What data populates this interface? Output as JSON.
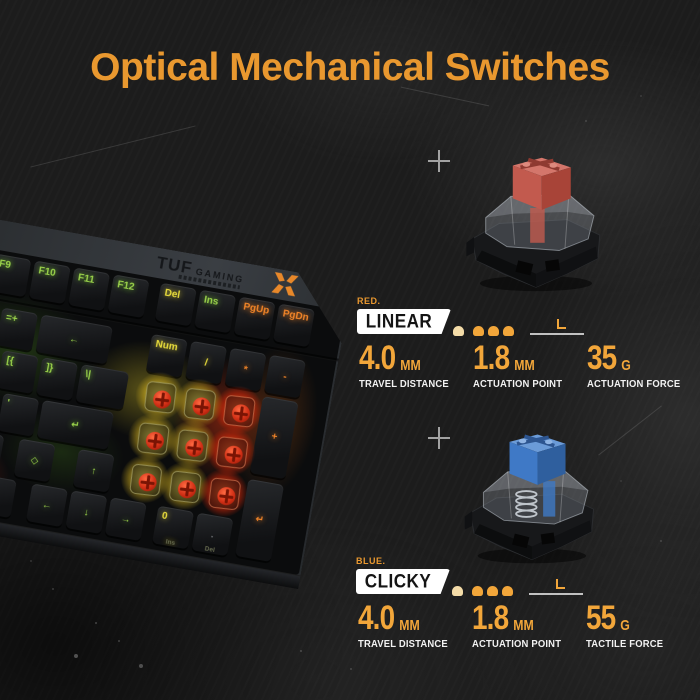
{
  "title": "Optical Mechanical Switches",
  "colors": {
    "accent": "#E9982F",
    "number": "#F2A63A",
    "label": "#F2F2F2",
    "badge_bg": "#FFFFFF",
    "badge_text": "#141414",
    "background": "#1C1C1C",
    "red_stem_top": "#D4766B",
    "red_stem_front": "#C25A4E",
    "red_stem_side": "#A84438",
    "blue_stem_top": "#6B9BD8",
    "blue_stem_front": "#3F79C6",
    "blue_stem_side": "#2F5F9E",
    "key_green": "#9BD34B",
    "key_yellow": "#E8DC3C",
    "key_orange": "#F08428",
    "logo_orange": "#E8882A"
  },
  "sections": [
    {
      "color_label": "RED.",
      "type_label": "LINEAR",
      "switch_name": "red-linear-optical-switch",
      "specs": [
        {
          "value": "4.0",
          "unit": "MM",
          "label": "TRAVEL DISTANCE"
        },
        {
          "value": "1.8",
          "unit": "MM",
          "label": "ACTUATION POINT"
        },
        {
          "value": "35",
          "unit": "G",
          "label": "ACTUATION FORCE"
        }
      ]
    },
    {
      "color_label": "BLUE.",
      "type_label": "CLICKY",
      "switch_name": "blue-clicky-optical-switch",
      "specs": [
        {
          "value": "4.0",
          "unit": "MM",
          "label": "TRAVEL DISTANCE"
        },
        {
          "value": "1.8",
          "unit": "MM",
          "label": "ACTUATION POINT"
        },
        {
          "value": "55",
          "unit": "G",
          "label": "TACTILE FORCE"
        }
      ]
    }
  ],
  "keyboard": {
    "brand": "TUF",
    "brand_sub": "GAMING",
    "keys": [
      {
        "label": "F9",
        "c": 0.2,
        "r": 0,
        "cls": "green"
      },
      {
        "label": "F10",
        "c": 1.2,
        "r": 0,
        "cls": "green"
      },
      {
        "label": "F11",
        "c": 2.2,
        "r": 0,
        "cls": "green"
      },
      {
        "label": "F12",
        "c": 3.2,
        "r": 0,
        "cls": "green"
      },
      {
        "label": "Del",
        "c": 4.4,
        "r": 0,
        "cls": "yellow"
      },
      {
        "label": "Ins",
        "c": 5.4,
        "r": 0,
        "cls": "green"
      },
      {
        "label": "PgUp",
        "c": 6.4,
        "r": 0,
        "cls": "orange"
      },
      {
        "label": "PgDn",
        "c": 7.4,
        "r": 0,
        "cls": "orange"
      },
      {
        "label": "=+",
        "c": 0.6,
        "r": 1,
        "cls": "green"
      },
      {
        "label": "←",
        "c": 1.6,
        "r": 1,
        "w": 1.9,
        "cls": "green",
        "center": true
      },
      {
        "label": "Num",
        "c": 4.4,
        "r": 1,
        "cls": "yellow"
      },
      {
        "label": "/",
        "c": 5.4,
        "r": 1,
        "cls": "yellow",
        "center": true
      },
      {
        "label": "*",
        "c": 6.4,
        "r": 1,
        "cls": "orange",
        "center": true
      },
      {
        "label": "-",
        "c": 7.4,
        "r": 1,
        "cls": "orange",
        "center": true
      },
      {
        "label": "[{",
        "c": 0.8,
        "r": 2,
        "cls": "green"
      },
      {
        "label": "]}",
        "c": 1.8,
        "r": 2,
        "cls": "green"
      },
      {
        "label": "\\|",
        "c": 2.8,
        "r": 2,
        "w": 1.3,
        "cls": "green"
      },
      {
        "switch": "yellow",
        "c": 4.4,
        "r": 2
      },
      {
        "switch": "yellow",
        "c": 5.4,
        "r": 2
      },
      {
        "switch": "red",
        "c": 6.4,
        "r": 2
      },
      {
        "label": "+",
        "c": 7.4,
        "r": 2,
        "h": 1.95,
        "cls": "orange",
        "center": true
      },
      {
        "label": "'",
        "c": 1.0,
        "r": 3,
        "cls": "green"
      },
      {
        "label": "↵",
        "c": 2.0,
        "r": 3,
        "w": 1.9,
        "cls": "green",
        "center": true
      },
      {
        "switch": "yellow",
        "c": 4.4,
        "r": 3
      },
      {
        "switch": "yellow",
        "c": 5.4,
        "r": 3
      },
      {
        "switch": "red",
        "c": 6.4,
        "r": 3
      },
      {
        "label": "",
        "c": 0.2,
        "r": 4,
        "w": 1.1,
        "cls": "dim"
      },
      {
        "label": "◇",
        "c": 1.6,
        "r": 4,
        "cls": "green",
        "center": true
      },
      {
        "label": "↑",
        "c": 3.1,
        "r": 4,
        "cls": "green",
        "center": true
      },
      {
        "switch": "yellow",
        "c": 4.4,
        "r": 4
      },
      {
        "switch": "yellow",
        "c": 5.4,
        "r": 4
      },
      {
        "switch": "red",
        "c": 6.4,
        "r": 4
      },
      {
        "label": "↵",
        "c": 7.4,
        "r": 4,
        "h": 1.95,
        "cls": "orange",
        "center": true
      },
      {
        "label": "",
        "c": 0.4,
        "r": 5,
        "w": 1.4,
        "cls": "dim"
      },
      {
        "label": "←",
        "c": 2.1,
        "r": 5,
        "cls": "green",
        "center": true
      },
      {
        "label": "↓",
        "c": 3.1,
        "r": 5,
        "cls": "green",
        "center": true
      },
      {
        "label": "→",
        "c": 4.1,
        "r": 5,
        "cls": "green",
        "center": true
      },
      {
        "label": "0",
        "c": 5.3,
        "r": 5,
        "cls": "yellow",
        "front": "Ins"
      },
      {
        "label": ".",
        "c": 6.3,
        "r": 5,
        "cls": "dim",
        "front": "Del",
        "center": true
      }
    ]
  }
}
